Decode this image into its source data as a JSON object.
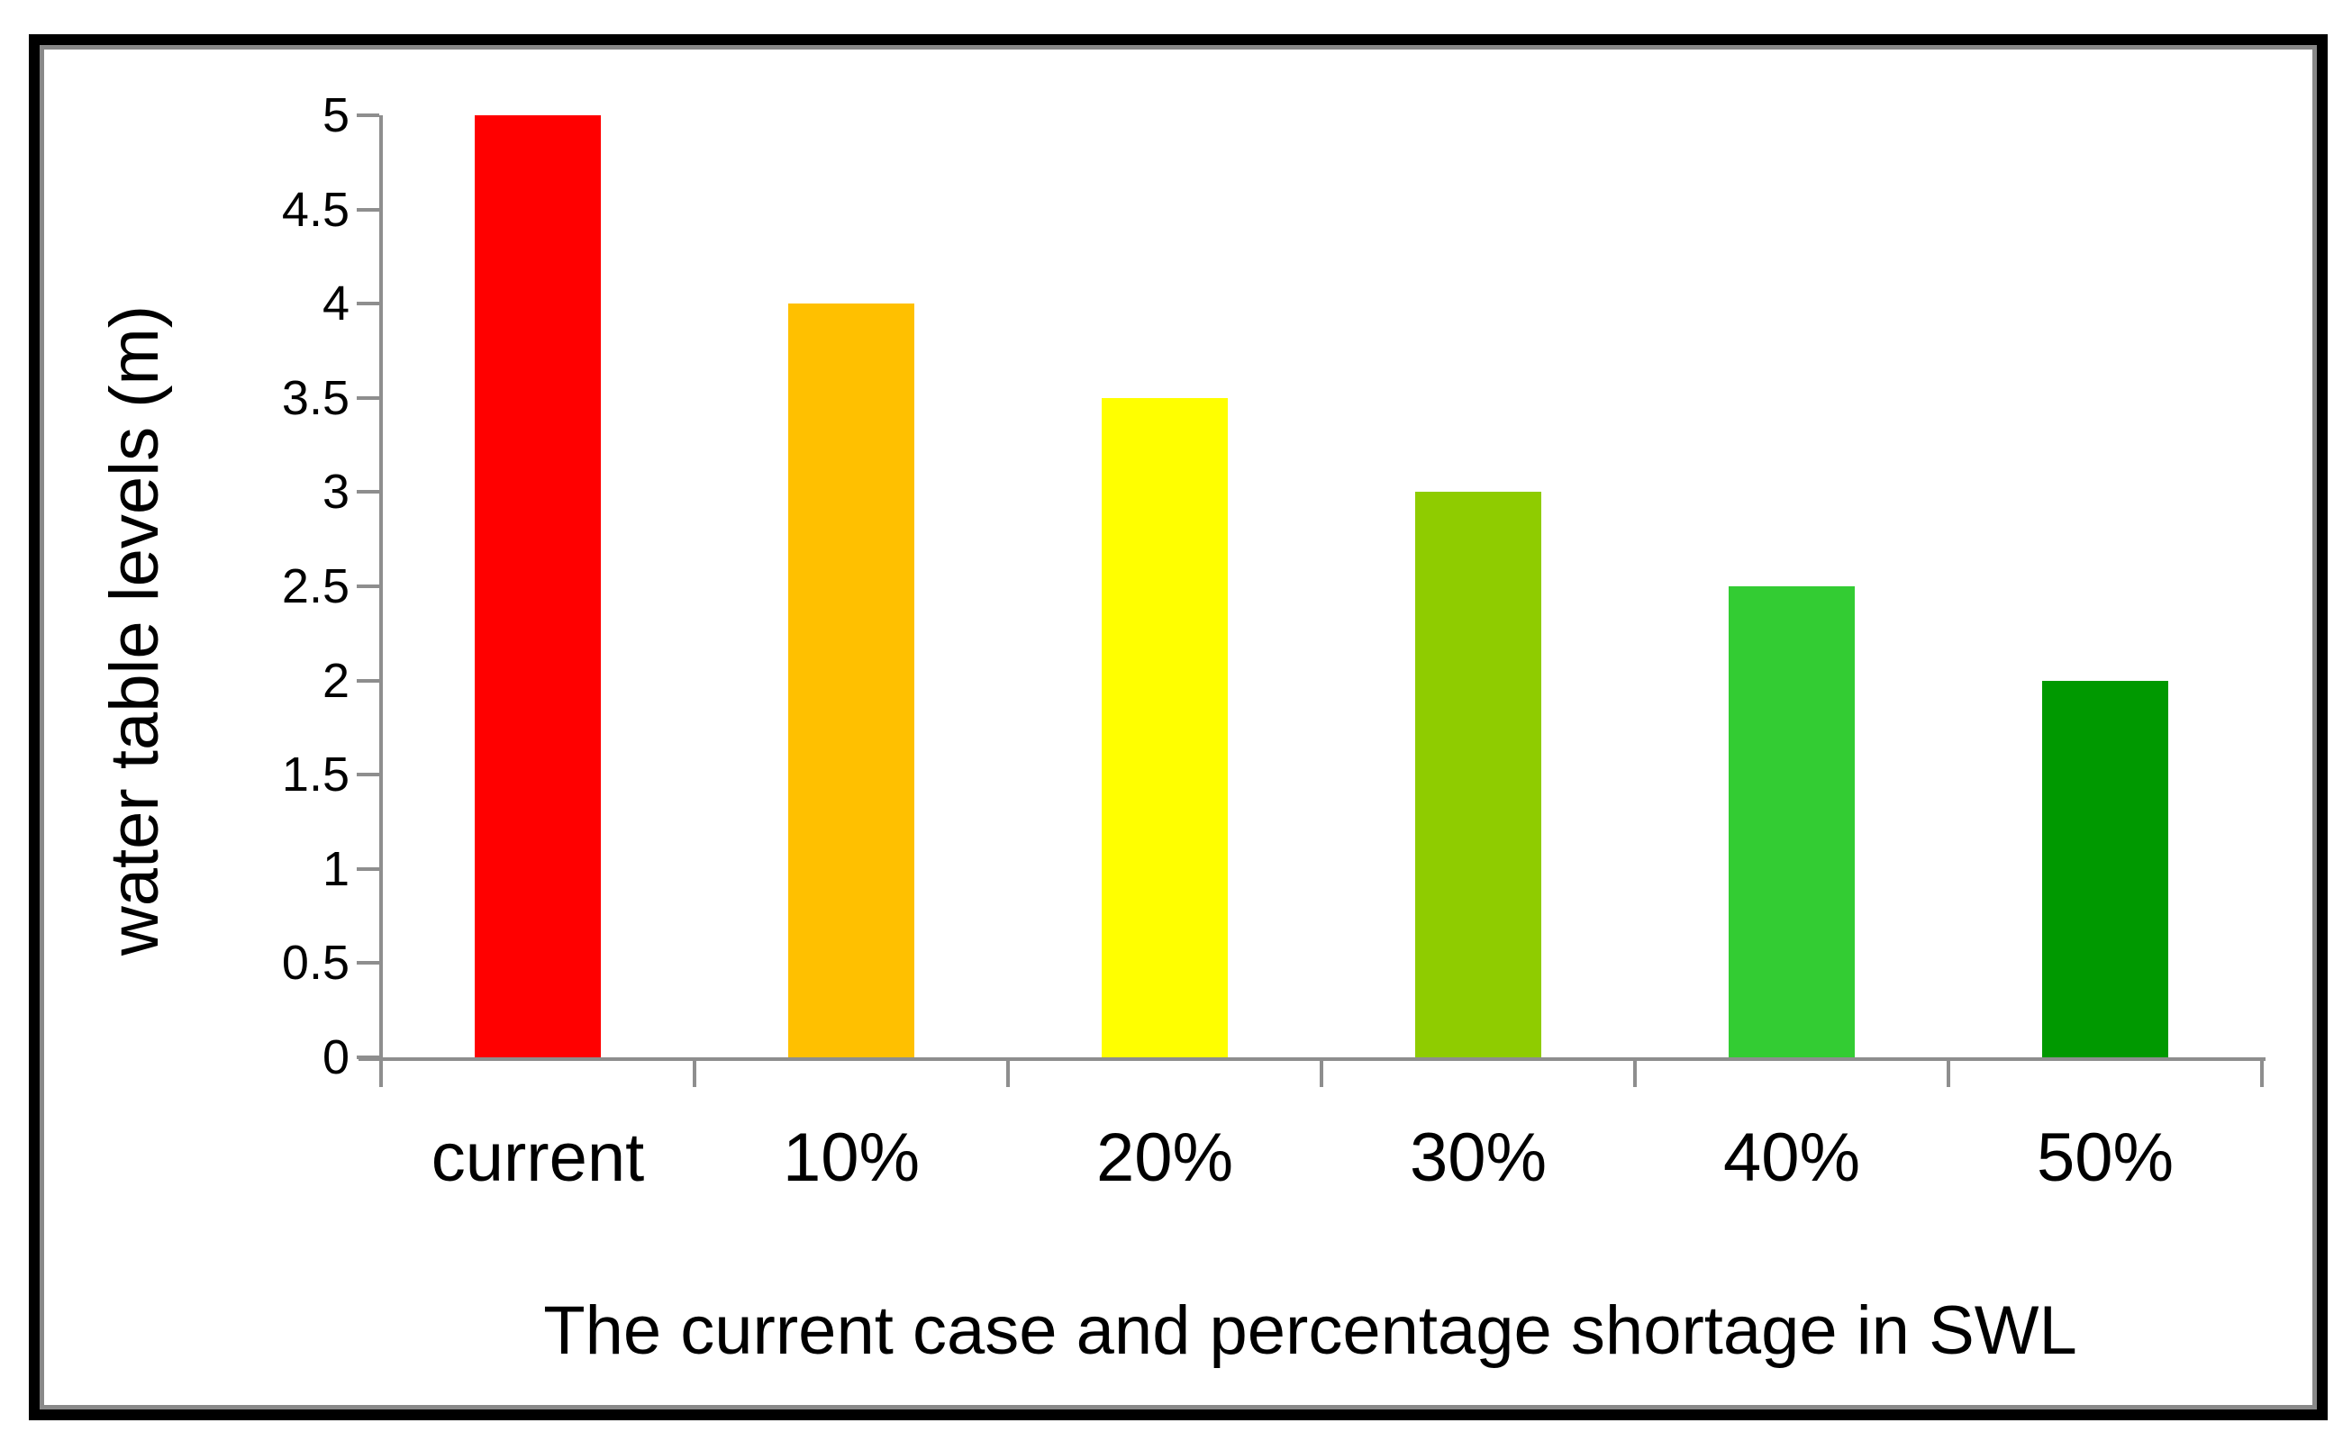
{
  "chart_data": {
    "type": "bar",
    "title": "",
    "categories": [
      "current",
      "10%",
      "20%",
      "30%",
      "40%",
      "50%"
    ],
    "values": [
      5,
      4,
      3.5,
      3,
      2.5,
      2
    ],
    "bar_colors": [
      "#FF0000",
      "#FFC000",
      "#FFFF00",
      "#8FCC00",
      "#33CC33",
      "#009900"
    ],
    "xlabel": "The current case and percentage shortage in SWL",
    "ylabel": "water table levels (m)",
    "ylim": [
      0,
      5
    ],
    "ytick_step": 0.5,
    "ytick_labels": [
      "0",
      "0.5",
      "1",
      "1.5",
      "2",
      "2.5",
      "3",
      "3.5",
      "4",
      "4.5",
      "5"
    ],
    "grid": false,
    "legend_position": "none",
    "axis_color": "#8E8E8E",
    "text_color": "#000000",
    "frame_outer_color": "#000000",
    "frame_inner_color": "#898989"
  }
}
